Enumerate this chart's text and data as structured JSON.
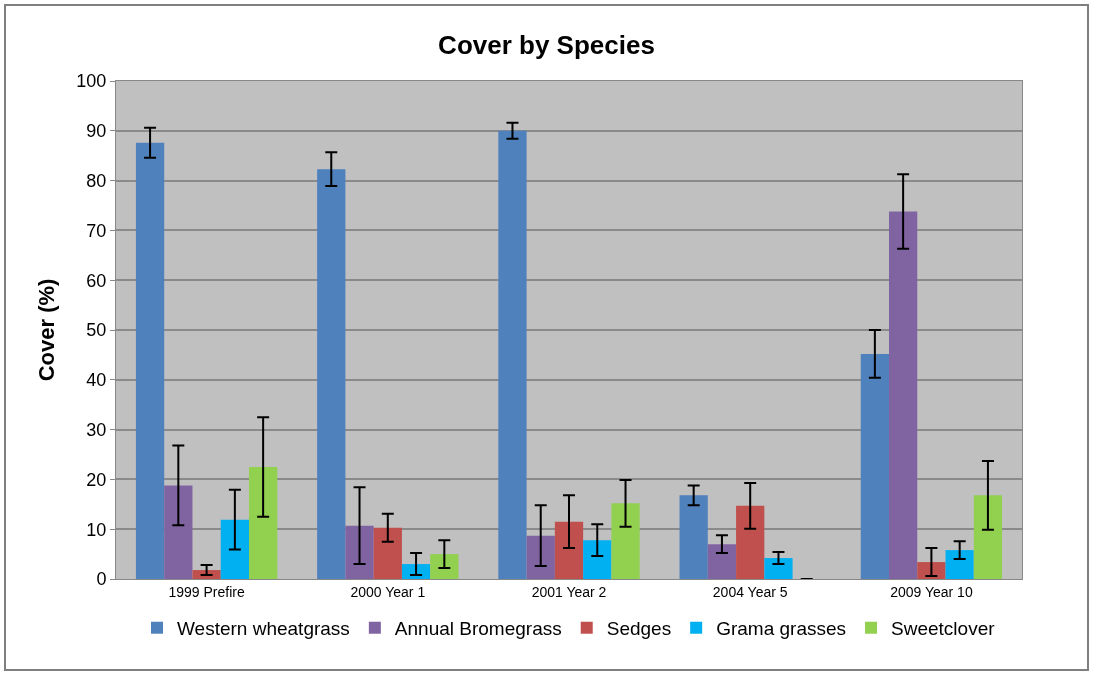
{
  "chart_data": {
    "type": "bar",
    "title": "Cover by Species",
    "ylabel": "Cover (%)",
    "categories": [
      "1999 Prefire",
      "2000 Year 1",
      "2001 Year 2",
      "2004 Year 5",
      "2009 Year 10"
    ],
    "series": [
      {
        "name": "Western wheatgrass",
        "color": "#4f81bd",
        "values": [
          87.6,
          82.3,
          90.0,
          16.8,
          45.2
        ],
        "errors": [
          3.0,
          3.4,
          1.6,
          2.0,
          4.8
        ]
      },
      {
        "name": "Annual Bromegrass",
        "color": "#8064a2",
        "values": [
          18.8,
          10.7,
          8.7,
          7.0,
          73.8
        ],
        "errors": [
          8.0,
          7.7,
          6.1,
          1.8,
          7.5
        ]
      },
      {
        "name": "Sedges",
        "color": "#c0504d",
        "values": [
          1.8,
          10.3,
          11.5,
          14.7,
          3.4
        ],
        "errors": [
          1.0,
          2.8,
          5.3,
          4.6,
          2.8
        ]
      },
      {
        "name": "Grama grasses",
        "color": "#00b0f0",
        "values": [
          11.9,
          3.0,
          7.8,
          4.2,
          5.8
        ],
        "errors": [
          6.0,
          2.2,
          3.2,
          1.2,
          1.8
        ]
      },
      {
        "name": "Sweetclover",
        "color": "#92d050",
        "values": [
          22.5,
          5.0,
          15.2,
          0,
          16.8
        ],
        "errors": [
          10.0,
          2.8,
          4.7,
          null,
          6.9
        ]
      }
    ],
    "ylim": [
      0,
      100
    ],
    "yticks": [
      0,
      10,
      20,
      30,
      40,
      50,
      60,
      70,
      80,
      90,
      100
    ],
    "grid": "y",
    "legend": "bottom"
  }
}
